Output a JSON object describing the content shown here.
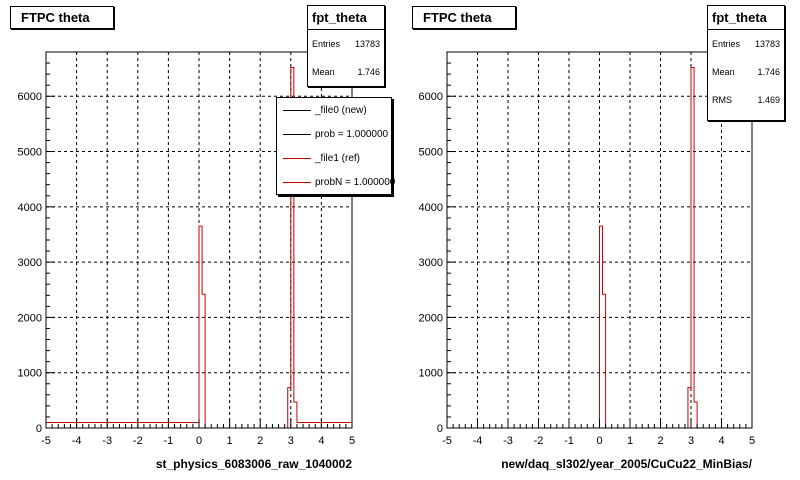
{
  "chart_data": [
    {
      "type": "histogram",
      "title": "FTPC theta",
      "xlabel": "st_physics_6083006_raw_1040002",
      "xlim": [
        -5,
        5
      ],
      "ylim": [
        0,
        6800
      ],
      "x_ticks": [
        "-5",
        "-4",
        "-3",
        "-2",
        "-1",
        "0",
        "1",
        "2",
        "3",
        "4",
        "5"
      ],
      "y_ticks": [
        "0",
        "1000",
        "2000",
        "3000",
        "4000",
        "5000",
        "6000"
      ],
      "grid": true,
      "stats": {
        "name": "fpt_theta",
        "rows": [
          {
            "label": "Entries",
            "value": "13783"
          },
          {
            "label": "Mean",
            "value": "1.746"
          }
        ]
      },
      "legend": {
        "placement": "top-right",
        "entries": [
          {
            "label": "_file0 (new)",
            "color": "#000000"
          },
          {
            "label": "prob = 1.000000",
            "color": "#000000"
          },
          {
            "label": "_file1 (ref)",
            "color": "#cc0000"
          },
          {
            "label": "probN = 1.000000",
            "color": "#cc0000"
          }
        ]
      },
      "series": [
        {
          "color": "#cc0000",
          "bins": [
            {
              "x0": -5.0,
              "x1": 0.0,
              "y": 100
            },
            {
              "x0": 0.0,
              "x1": 0.1,
              "y": 3650
            },
            {
              "x0": 0.1,
              "x1": 0.2,
              "y": 2420
            },
            {
              "x0": 0.2,
              "x1": 2.9,
              "y": 0
            },
            {
              "x0": 2.9,
              "x1": 3.0,
              "y": 730
            },
            {
              "x0": 3.0,
              "x1": 3.1,
              "y": 6520
            },
            {
              "x0": 3.1,
              "x1": 3.2,
              "y": 470
            },
            {
              "x0": 3.2,
              "x1": 5.0,
              "y": 100
            }
          ]
        }
      ]
    },
    {
      "type": "histogram",
      "title": "FTPC theta",
      "xlabel": "new/daq_sl302/year_2005/CuCu22_MinBias/",
      "xlim": [
        -5,
        5
      ],
      "ylim": [
        0,
        6800
      ],
      "x_ticks": [
        "-5",
        "-4",
        "-3",
        "-2",
        "-1",
        "0",
        "1",
        "2",
        "3",
        "4",
        "5"
      ],
      "y_ticks": [
        "0",
        "1000",
        "2000",
        "3000",
        "4000",
        "5000",
        "6000"
      ],
      "grid": true,
      "stats": {
        "name": "fpt_theta",
        "rows": [
          {
            "label": "Entries",
            "value": "13783"
          },
          {
            "label": "Mean",
            "value": "1.746"
          },
          {
            "label": "RMS",
            "value": "1.469"
          }
        ]
      },
      "series": [
        {
          "color": "#cc0000",
          "bins": [
            {
              "x0": -5.0,
              "x1": 0.0,
              "y": 0
            },
            {
              "x0": 0.0,
              "x1": 0.1,
              "y": 3650
            },
            {
              "x0": 0.1,
              "x1": 0.2,
              "y": 2420
            },
            {
              "x0": 0.2,
              "x1": 2.9,
              "y": 0
            },
            {
              "x0": 2.9,
              "x1": 3.0,
              "y": 730
            },
            {
              "x0": 3.0,
              "x1": 3.1,
              "y": 6520
            },
            {
              "x0": 3.1,
              "x1": 3.2,
              "y": 470
            },
            {
              "x0": 3.2,
              "x1": 5.0,
              "y": 0
            }
          ]
        }
      ]
    }
  ]
}
